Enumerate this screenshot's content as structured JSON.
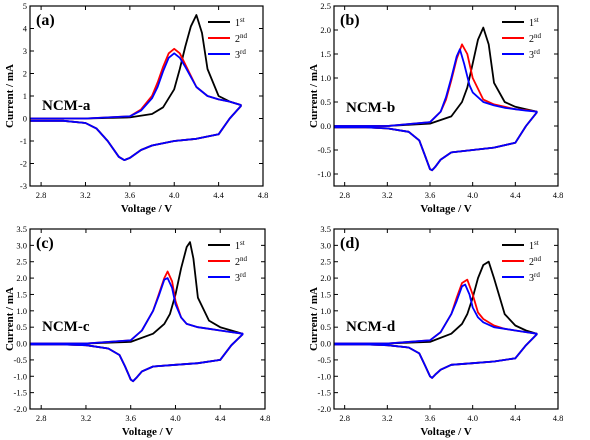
{
  "chart_data": [
    {
      "type": "line",
      "panel": "(a)",
      "sample": "NCM-a",
      "xlabel": "Voltage / V",
      "ylabel": "Current / mA",
      "xlim": [
        2.7,
        4.8
      ],
      "ylim": [
        -3,
        5
      ],
      "xticks": [
        "2.8",
        "3.2",
        "3.6",
        "4.0",
        "4.4",
        "4.8"
      ],
      "yticks": [
        "-3",
        "-2",
        "-1",
        "0",
        "1",
        "2",
        "3",
        "4",
        "5"
      ],
      "series": [
        {
          "name": "1st",
          "color": "#000000",
          "x": [
            2.7,
            3.2,
            3.6,
            3.8,
            3.9,
            4.0,
            4.05,
            4.1,
            4.15,
            4.2,
            4.25,
            4.3,
            4.4,
            4.5,
            4.6,
            4.6,
            4.5,
            4.4,
            4.2,
            4.0,
            3.8,
            3.7,
            3.6,
            3.55,
            3.5,
            3.4,
            3.3,
            3.2,
            3.0,
            2.7
          ],
          "y": [
            0.0,
            0.0,
            0.05,
            0.2,
            0.5,
            1.3,
            2.2,
            3.2,
            4.1,
            4.6,
            3.8,
            2.2,
            1.0,
            0.75,
            0.6,
            0.55,
            0.0,
            -0.7,
            -0.9,
            -1.0,
            -1.2,
            -1.4,
            -1.75,
            -1.85,
            -1.7,
            -1.0,
            -0.45,
            -0.2,
            -0.1,
            -0.1
          ]
        },
        {
          "name": "2nd",
          "color": "#ff0000",
          "x": [
            2.7,
            3.2,
            3.6,
            3.7,
            3.8,
            3.85,
            3.9,
            3.95,
            4.0,
            4.05,
            4.1,
            4.2,
            4.3,
            4.4,
            4.5,
            4.6,
            4.6,
            4.5,
            4.4,
            4.2,
            4.0,
            3.8,
            3.7,
            3.6,
            3.55,
            3.5,
            3.4,
            3.3,
            3.2,
            3.0,
            2.7
          ],
          "y": [
            0.0,
            0.0,
            0.1,
            0.4,
            1.0,
            1.6,
            2.3,
            2.9,
            3.1,
            2.9,
            2.4,
            1.4,
            1.0,
            0.85,
            0.75,
            0.6,
            0.55,
            0.0,
            -0.7,
            -0.9,
            -1.0,
            -1.2,
            -1.4,
            -1.75,
            -1.85,
            -1.7,
            -1.0,
            -0.45,
            -0.2,
            -0.1,
            -0.1
          ]
        },
        {
          "name": "3rd",
          "color": "#0000ff",
          "x": [
            2.7,
            3.2,
            3.6,
            3.7,
            3.8,
            3.85,
            3.9,
            3.95,
            4.0,
            4.05,
            4.1,
            4.2,
            4.3,
            4.4,
            4.5,
            4.6,
            4.6,
            4.5,
            4.4,
            4.2,
            4.0,
            3.8,
            3.7,
            3.6,
            3.55,
            3.5,
            3.4,
            3.3,
            3.2,
            3.0,
            2.7
          ],
          "y": [
            0.0,
            0.0,
            0.1,
            0.35,
            0.9,
            1.4,
            2.1,
            2.7,
            2.9,
            2.7,
            2.3,
            1.4,
            1.0,
            0.85,
            0.75,
            0.6,
            0.55,
            0.0,
            -0.7,
            -0.9,
            -1.0,
            -1.2,
            -1.4,
            -1.75,
            -1.85,
            -1.7,
            -1.0,
            -0.45,
            -0.2,
            -0.1,
            -0.1
          ]
        }
      ]
    },
    {
      "type": "line",
      "panel": "(b)",
      "sample": "NCM-b",
      "xlabel": "Voltage / V",
      "ylabel": "Current / mA",
      "xlim": [
        2.7,
        4.8
      ],
      "ylim": [
        -1.25,
        2.5
      ],
      "xticks": [
        "2.8",
        "3.2",
        "3.6",
        "4.0",
        "4.4",
        "4.8"
      ],
      "yticks": [
        "-1.0",
        "-0.5",
        "0.0",
        "0.5",
        "1.0",
        "1.5",
        "2.0",
        "2.5"
      ],
      "series": [
        {
          "name": "1st",
          "color": "#000000",
          "x": [
            2.7,
            3.2,
            3.6,
            3.8,
            3.9,
            3.95,
            4.0,
            4.05,
            4.1,
            4.15,
            4.2,
            4.3,
            4.4,
            4.5,
            4.6,
            4.6,
            4.5,
            4.4,
            4.2,
            4.0,
            3.8,
            3.7,
            3.65,
            3.62,
            3.6,
            3.55,
            3.5,
            3.4,
            3.2,
            3.0,
            2.7
          ],
          "y": [
            0.0,
            0.0,
            0.05,
            0.2,
            0.5,
            0.8,
            1.3,
            1.8,
            2.05,
            1.7,
            0.9,
            0.5,
            0.4,
            0.35,
            0.3,
            0.28,
            0.0,
            -0.35,
            -0.45,
            -0.5,
            -0.55,
            -0.7,
            -0.85,
            -0.92,
            -0.9,
            -0.6,
            -0.3,
            -0.12,
            -0.05,
            -0.03,
            -0.03
          ]
        },
        {
          "name": "2nd",
          "color": "#ff0000",
          "x": [
            2.7,
            3.2,
            3.6,
            3.7,
            3.75,
            3.8,
            3.85,
            3.9,
            3.95,
            4.0,
            4.1,
            4.2,
            4.3,
            4.4,
            4.5,
            4.6,
            4.6,
            4.5,
            4.4,
            4.2,
            4.0,
            3.8,
            3.7,
            3.65,
            3.62,
            3.6,
            3.55,
            3.5,
            3.4,
            3.2,
            3.0,
            2.7
          ],
          "y": [
            0.0,
            0.0,
            0.08,
            0.3,
            0.55,
            0.95,
            1.4,
            1.7,
            1.5,
            1.0,
            0.55,
            0.45,
            0.4,
            0.35,
            0.33,
            0.3,
            0.28,
            0.0,
            -0.35,
            -0.45,
            -0.5,
            -0.55,
            -0.7,
            -0.85,
            -0.92,
            -0.9,
            -0.6,
            -0.3,
            -0.12,
            -0.05,
            -0.03,
            -0.03
          ]
        },
        {
          "name": "3rd",
          "color": "#0000ff",
          "x": [
            2.7,
            3.2,
            3.6,
            3.7,
            3.75,
            3.8,
            3.85,
            3.88,
            3.92,
            3.97,
            4.0,
            4.1,
            4.2,
            4.3,
            4.4,
            4.5,
            4.6,
            4.6,
            4.5,
            4.4,
            4.2,
            4.0,
            3.8,
            3.7,
            3.65,
            3.62,
            3.6,
            3.55,
            3.5,
            3.4,
            3.2,
            3.0,
            2.7
          ],
          "y": [
            0.0,
            0.0,
            0.08,
            0.3,
            0.6,
            1.0,
            1.45,
            1.6,
            1.3,
            0.85,
            0.7,
            0.5,
            0.43,
            0.38,
            0.35,
            0.32,
            0.3,
            0.28,
            0.0,
            -0.35,
            -0.45,
            -0.5,
            -0.55,
            -0.7,
            -0.85,
            -0.92,
            -0.9,
            -0.6,
            -0.3,
            -0.12,
            -0.05,
            -0.03,
            -0.03
          ]
        }
      ]
    },
    {
      "type": "line",
      "panel": "(c)",
      "sample": "NCM-c",
      "xlabel": "Voltage / V",
      "ylabel": "Current / mA",
      "xlim": [
        2.7,
        4.8
      ],
      "ylim": [
        -2.0,
        3.5
      ],
      "xticks": [
        "2.8",
        "3.2",
        "3.6",
        "4.0",
        "4.4",
        "4.8"
      ],
      "yticks": [
        "-2.0",
        "-1.5",
        "-1.0",
        "-0.5",
        "0.0",
        "0.5",
        "1.0",
        "1.5",
        "2.0",
        "2.5",
        "3.0",
        "3.5"
      ],
      "series": [
        {
          "name": "1st",
          "color": "#000000",
          "x": [
            2.7,
            3.2,
            3.6,
            3.8,
            3.9,
            3.95,
            4.0,
            4.05,
            4.1,
            4.13,
            4.16,
            4.2,
            4.3,
            4.4,
            4.5,
            4.6,
            4.6,
            4.5,
            4.4,
            4.2,
            4.0,
            3.8,
            3.7,
            3.65,
            3.62,
            3.6,
            3.55,
            3.5,
            3.4,
            3.2,
            3.0,
            2.7
          ],
          "y": [
            0.0,
            0.0,
            0.05,
            0.3,
            0.6,
            0.9,
            1.5,
            2.3,
            2.95,
            3.1,
            2.6,
            1.4,
            0.7,
            0.5,
            0.4,
            0.3,
            0.28,
            -0.05,
            -0.5,
            -0.6,
            -0.65,
            -0.7,
            -0.85,
            -1.05,
            -1.15,
            -1.1,
            -0.7,
            -0.35,
            -0.15,
            -0.05,
            -0.03,
            -0.03
          ]
        },
        {
          "name": "2nd",
          "color": "#ff0000",
          "x": [
            2.7,
            3.2,
            3.6,
            3.7,
            3.8,
            3.85,
            3.9,
            3.93,
            3.97,
            4.0,
            4.05,
            4.1,
            4.2,
            4.3,
            4.4,
            4.5,
            4.6,
            4.6,
            4.5,
            4.4,
            4.2,
            4.0,
            3.8,
            3.7,
            3.65,
            3.62,
            3.6,
            3.55,
            3.5,
            3.4,
            3.2,
            3.0,
            2.7
          ],
          "y": [
            0.0,
            0.0,
            0.1,
            0.4,
            1.0,
            1.5,
            2.0,
            2.2,
            1.9,
            1.3,
            0.8,
            0.6,
            0.5,
            0.45,
            0.4,
            0.35,
            0.3,
            0.28,
            -0.05,
            -0.5,
            -0.6,
            -0.65,
            -0.7,
            -0.85,
            -1.05,
            -1.15,
            -1.1,
            -0.7,
            -0.35,
            -0.15,
            -0.05,
            -0.03,
            -0.03
          ]
        },
        {
          "name": "3rd",
          "color": "#0000ff",
          "x": [
            2.7,
            3.2,
            3.6,
            3.7,
            3.8,
            3.85,
            3.9,
            3.93,
            3.97,
            4.0,
            4.05,
            4.1,
            4.2,
            4.3,
            4.4,
            4.5,
            4.6,
            4.6,
            4.5,
            4.4,
            4.2,
            4.0,
            3.8,
            3.7,
            3.65,
            3.62,
            3.6,
            3.55,
            3.5,
            3.4,
            3.2,
            3.0,
            2.7
          ],
          "y": [
            0.0,
            0.0,
            0.1,
            0.4,
            1.0,
            1.45,
            1.95,
            2.0,
            1.7,
            1.2,
            0.8,
            0.6,
            0.5,
            0.45,
            0.4,
            0.35,
            0.3,
            0.28,
            -0.05,
            -0.5,
            -0.6,
            -0.65,
            -0.7,
            -0.85,
            -1.05,
            -1.15,
            -1.1,
            -0.7,
            -0.35,
            -0.15,
            -0.05,
            -0.03,
            -0.03
          ]
        }
      ]
    },
    {
      "type": "line",
      "panel": "(d)",
      "sample": "NCM-d",
      "xlabel": "Voltage / V",
      "ylabel": "Current / mA",
      "xlim": [
        2.7,
        4.8
      ],
      "ylim": [
        -2.0,
        3.5
      ],
      "xticks": [
        "2.8",
        "3.2",
        "3.6",
        "4.0",
        "4.4",
        "4.8"
      ],
      "yticks": [
        "-2.0",
        "-1.5",
        "-1.0",
        "-0.5",
        "0.0",
        "0.5",
        "1.0",
        "1.5",
        "2.0",
        "2.5",
        "3.0",
        "3.5"
      ],
      "series": [
        {
          "name": "1st",
          "color": "#000000",
          "x": [
            2.7,
            3.2,
            3.6,
            3.8,
            3.9,
            3.95,
            4.0,
            4.05,
            4.1,
            4.15,
            4.2,
            4.3,
            4.4,
            4.5,
            4.6,
            4.6,
            4.5,
            4.4,
            4.2,
            4.0,
            3.8,
            3.7,
            3.65,
            3.62,
            3.6,
            3.55,
            3.5,
            3.4,
            3.2,
            3.0,
            2.7
          ],
          "y": [
            0.0,
            0.0,
            0.05,
            0.3,
            0.6,
            0.9,
            1.4,
            2.0,
            2.4,
            2.5,
            2.0,
            0.9,
            0.55,
            0.4,
            0.3,
            0.28,
            -0.05,
            -0.45,
            -0.55,
            -0.6,
            -0.65,
            -0.8,
            -0.95,
            -1.05,
            -1.0,
            -0.65,
            -0.3,
            -0.12,
            -0.05,
            -0.03,
            -0.03
          ]
        },
        {
          "name": "2nd",
          "color": "#ff0000",
          "x": [
            2.7,
            3.2,
            3.6,
            3.7,
            3.8,
            3.85,
            3.9,
            3.95,
            4.0,
            4.05,
            4.1,
            4.2,
            4.3,
            4.4,
            4.5,
            4.6,
            4.6,
            4.5,
            4.4,
            4.2,
            4.0,
            3.8,
            3.7,
            3.65,
            3.62,
            3.6,
            3.55,
            3.5,
            3.4,
            3.2,
            3.0,
            2.7
          ],
          "y": [
            0.0,
            0.0,
            0.1,
            0.35,
            0.9,
            1.4,
            1.85,
            1.95,
            1.5,
            0.95,
            0.75,
            0.55,
            0.45,
            0.4,
            0.35,
            0.3,
            0.28,
            -0.05,
            -0.45,
            -0.55,
            -0.6,
            -0.65,
            -0.8,
            -0.95,
            -1.05,
            -1.0,
            -0.65,
            -0.3,
            -0.12,
            -0.05,
            -0.03,
            -0.03
          ]
        },
        {
          "name": "3rd",
          "color": "#0000ff",
          "x": [
            2.7,
            3.2,
            3.6,
            3.7,
            3.8,
            3.85,
            3.9,
            3.93,
            3.97,
            4.0,
            4.05,
            4.1,
            4.2,
            4.3,
            4.4,
            4.5,
            4.6,
            4.6,
            4.5,
            4.4,
            4.2,
            4.0,
            3.8,
            3.7,
            3.65,
            3.62,
            3.6,
            3.55,
            3.5,
            3.4,
            3.2,
            3.0,
            2.7
          ],
          "y": [
            0.0,
            0.0,
            0.1,
            0.35,
            0.9,
            1.3,
            1.75,
            1.8,
            1.5,
            1.1,
            0.8,
            0.65,
            0.5,
            0.45,
            0.4,
            0.35,
            0.3,
            0.28,
            -0.05,
            -0.45,
            -0.55,
            -0.6,
            -0.65,
            -0.8,
            -0.95,
            -1.05,
            -1.0,
            -0.65,
            -0.3,
            -0.12,
            -0.05,
            -0.03,
            -0.03
          ]
        }
      ]
    }
  ],
  "legend_suffixes": [
    "st",
    "nd",
    "rd"
  ]
}
